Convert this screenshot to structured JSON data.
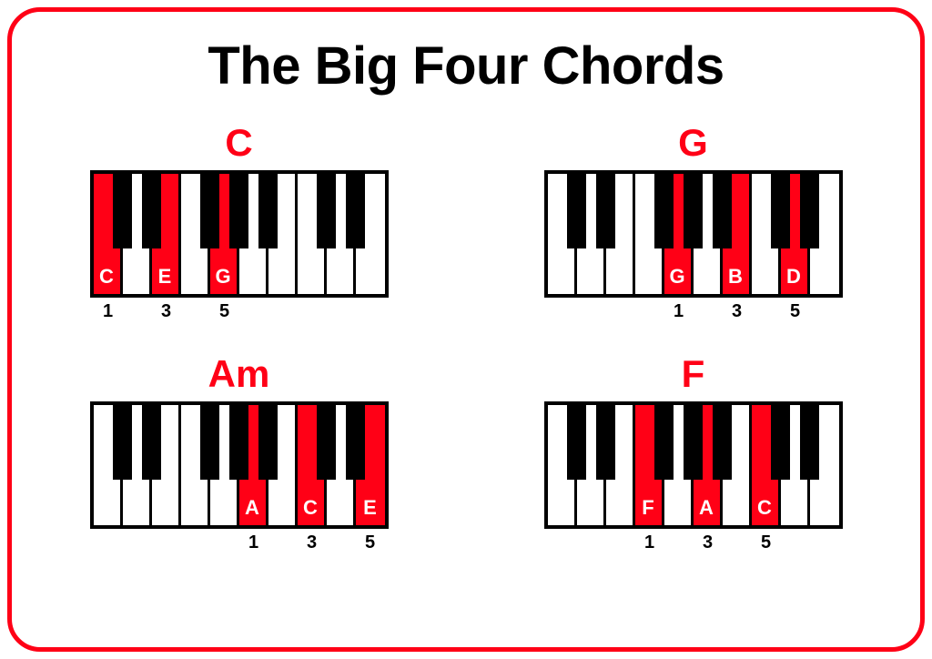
{
  "title": "The Big Four Chords",
  "colors": {
    "border": "#ff0016",
    "chord_name": "#ff0016",
    "highlight": "#ff0016",
    "black_key": "#000000",
    "white_key": "#ffffff",
    "note_label": "#ffffff",
    "title_color": "#000000",
    "finger_color": "#000000"
  },
  "layout": {
    "white_key_width": 32,
    "black_key_width": 21,
    "keyboard_height": 140,
    "chord_name_fontsize": 42,
    "title_fontsize": 58,
    "note_label_fontsize": 22,
    "finger_fontsize": 20,
    "black_pattern": [
      0,
      1,
      3,
      4,
      5
    ],
    "white_keys_per_octave": 7
  },
  "chords": [
    {
      "name": "C",
      "num_white_keys": 10,
      "start_white_index": 0,
      "highlighted": [
        {
          "white_index": 0,
          "label": "C",
          "finger": "1"
        },
        {
          "white_index": 2,
          "label": "E",
          "finger": "3"
        },
        {
          "white_index": 4,
          "label": "G",
          "finger": "5"
        }
      ]
    },
    {
      "name": "G",
      "num_white_keys": 10,
      "start_white_index": 0,
      "highlighted": [
        {
          "white_index": 4,
          "label": "G",
          "finger": "1"
        },
        {
          "white_index": 6,
          "label": "B",
          "finger": "3"
        },
        {
          "white_index": 8,
          "label": "D",
          "finger": "5"
        }
      ]
    },
    {
      "name": "Am",
      "num_white_keys": 10,
      "start_white_index": 0,
      "highlighted": [
        {
          "white_index": 5,
          "label": "A",
          "finger": "1"
        },
        {
          "white_index": 7,
          "label": "C",
          "finger": "3"
        },
        {
          "white_index": 9,
          "label": "E",
          "finger": "5"
        }
      ]
    },
    {
      "name": "F",
      "num_white_keys": 10,
      "start_white_index": 0,
      "highlighted": [
        {
          "white_index": 3,
          "label": "F",
          "finger": "1"
        },
        {
          "white_index": 5,
          "label": "A",
          "finger": "3"
        },
        {
          "white_index": 7,
          "label": "C",
          "finger": "5"
        }
      ]
    }
  ]
}
